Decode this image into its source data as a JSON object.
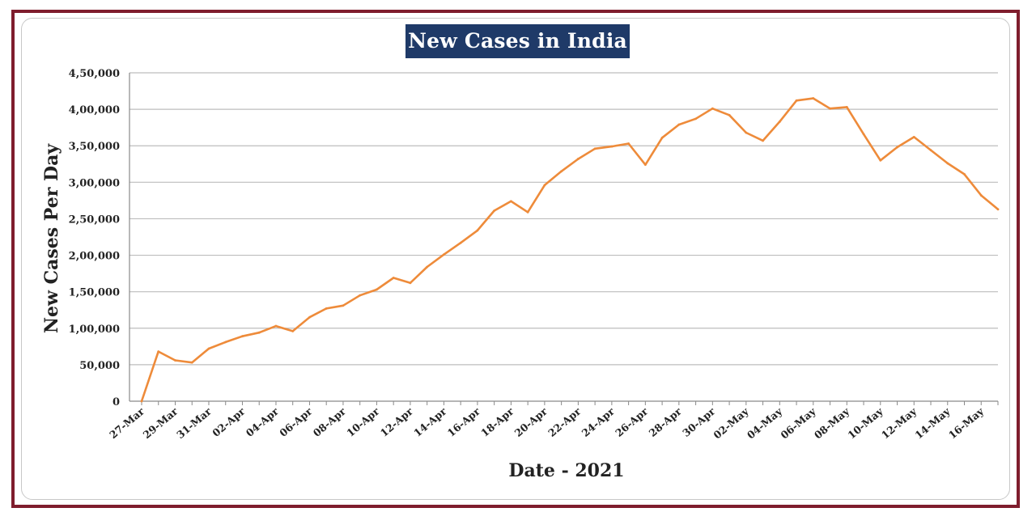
{
  "chart_data": {
    "type": "line",
    "title": "New Cases in India",
    "xlabel": "Date - 2021",
    "ylabel": "New Cases Per Day",
    "ylim": [
      0,
      450000
    ],
    "y_ticks": [
      0,
      50000,
      100000,
      150000,
      200000,
      250000,
      300000,
      350000,
      400000,
      450000
    ],
    "y_tick_labels": [
      "0",
      "50,000",
      "1,00,000",
      "1,50,000",
      "2,00,000",
      "2,50,000",
      "3,00,000",
      "3,50,000",
      "4,00,000",
      "4,50,000"
    ],
    "x_tick_labels": [
      "27-Mar",
      "29-Mar",
      "31-Mar",
      "02-Apr",
      "04-Apr",
      "06-Apr",
      "08-Apr",
      "10-Apr",
      "12-Apr",
      "14-Apr",
      "16-Apr",
      "18-Apr",
      "20-Apr",
      "22-Apr",
      "24-Apr",
      "26-Apr",
      "28-Apr",
      "30-Apr",
      "02-May",
      "04-May",
      "06-May",
      "08-May",
      "10-May",
      "12-May",
      "14-May",
      "16-May"
    ],
    "grid": true,
    "legend": "none",
    "series": [
      {
        "name": "New Cases",
        "color": "#ee8b3a",
        "values": [
          0,
          68000,
          56000,
          53000,
          72000,
          81000,
          89000,
          94000,
          103000,
          96000,
          115000,
          127000,
          131000,
          145000,
          153000,
          169000,
          162000,
          184000,
          201000,
          217000,
          234000,
          261000,
          274000,
          259000,
          296000,
          315000,
          332000,
          346000,
          349000,
          353000,
          324000,
          361000,
          379000,
          387000,
          401000,
          392000,
          368000,
          357000,
          383000,
          412000,
          415000,
          401000,
          403000,
          366000,
          330000,
          348000,
          362000,
          344000,
          326000,
          311000,
          282000,
          263000
        ]
      }
    ]
  }
}
